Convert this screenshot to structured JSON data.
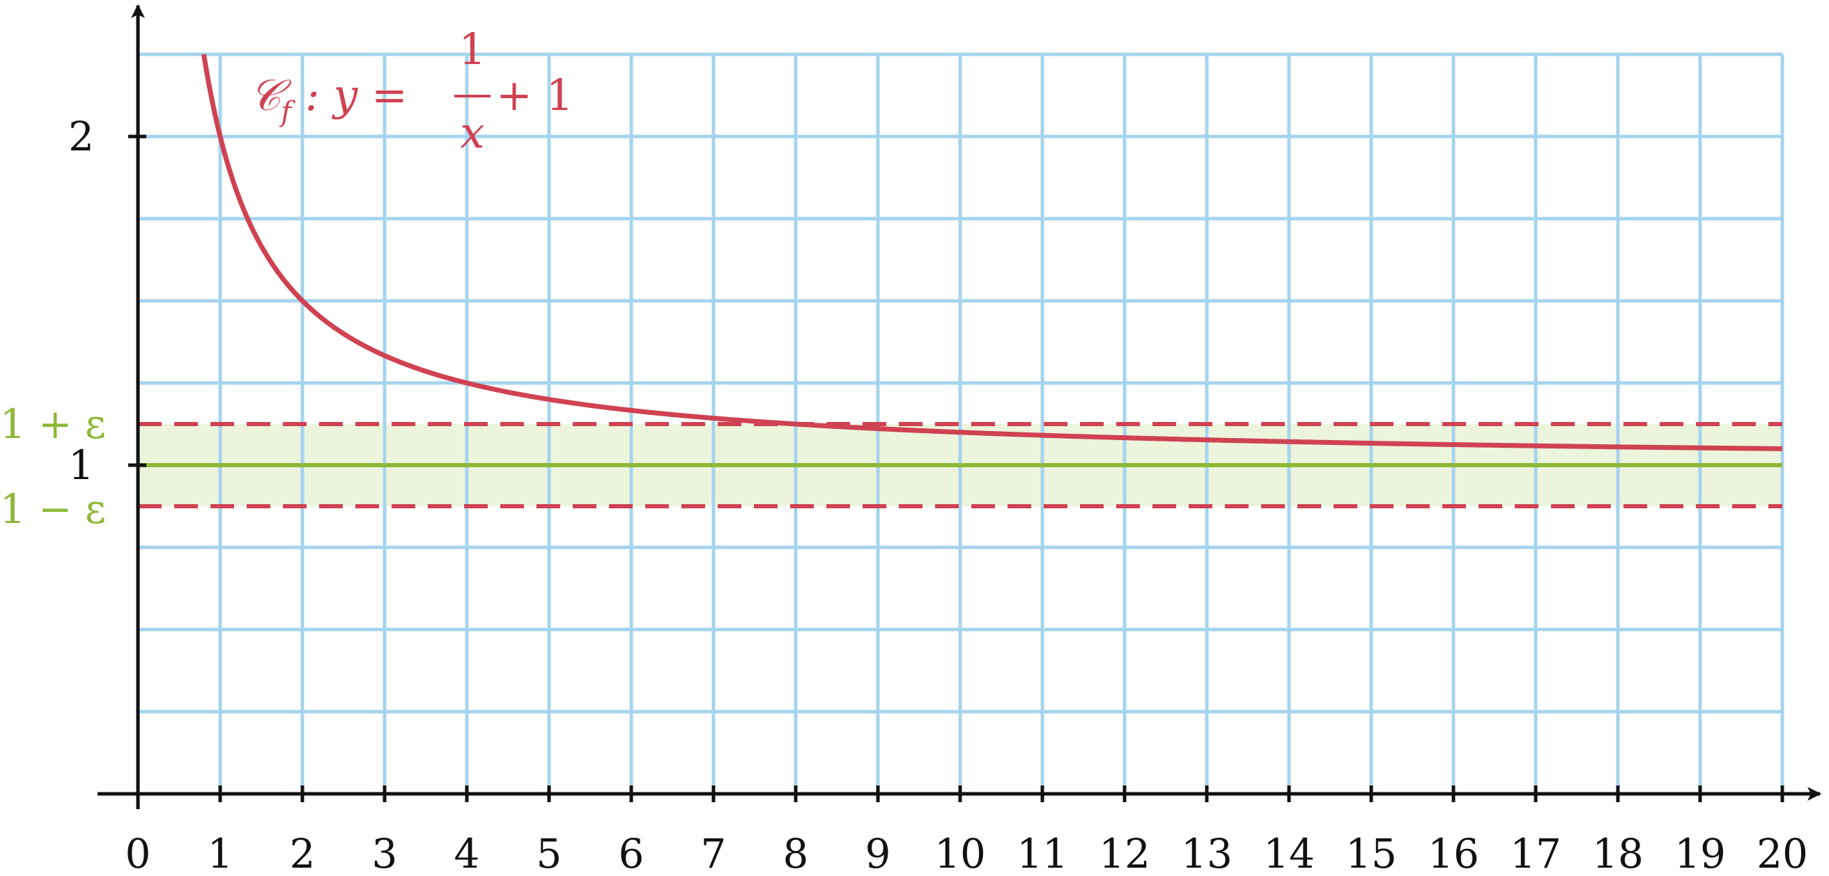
{
  "chart_data": {
    "type": "line",
    "xlim": [
      0,
      20
    ],
    "ylim": [
      0,
      2.25
    ],
    "grid": true,
    "grid_step": {
      "x": 1,
      "y": 0.25
    },
    "x_ticks": [
      0,
      1,
      2,
      3,
      4,
      5,
      6,
      7,
      8,
      9,
      10,
      11,
      12,
      13,
      14,
      15,
      16,
      17,
      18,
      19,
      20
    ],
    "x_tick_labels": [
      "0",
      "1",
      "2",
      "3",
      "4",
      "5",
      "6",
      "7",
      "8",
      "9",
      "10",
      "11",
      "12",
      "13",
      "14",
      "15",
      "16",
      "17",
      "18",
      "19",
      "20"
    ],
    "y_ticks": [
      1,
      2
    ],
    "y_tick_labels": [
      "1",
      "2"
    ],
    "curve": {
      "label_prefix": "𝒞",
      "label_sub": "f",
      "label_mid": " : y = ",
      "label_num": "1",
      "label_den": "x",
      "label_suffix": " + 1",
      "function": "1/x + 1",
      "x_start": 0.8,
      "x_end": 20,
      "color": "#cf4252"
    },
    "band": {
      "center": 1,
      "epsilon": 0.125,
      "upper_label": "1 + ε",
      "lower_label": "1 − ε",
      "fill_color": "#ecf5dc",
      "center_line_color": "#8db838",
      "bound_line_color": "#cf4252"
    },
    "colors": {
      "grid": "#a6d4ee",
      "axis": "#111111"
    }
  }
}
